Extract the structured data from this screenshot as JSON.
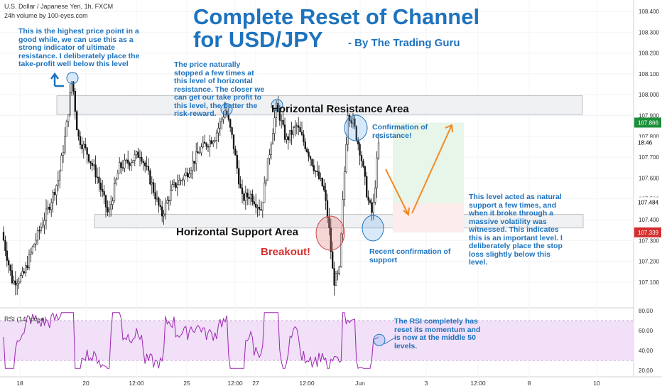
{
  "header": {
    "symbol_line": "U.S. Dollar / Japanese Yen, 1h, FXCM",
    "volume_line": "24h volume by 100-eyes.com"
  },
  "title": {
    "line1": "Complete Reset of Channel",
    "line2": "for USD/JPY",
    "byline": "- By The Trading Guru"
  },
  "annotations": {
    "highest_point": "This is the highest price point in a good while, we can use this as a strong indicator of ultimate resistance. I deliberately place the take-profit well below this level",
    "price_stopped": "The price naturally stopped a few times at this level of horizontal resistance. The closer we can get our take profit to this level, the better the risk-reward.",
    "confirmation_resistance": "Confirmation of resistance!",
    "support_level": "This level acted as natural support a few times, and when it broke through a massive volatility was witnessed. This indicates this is an important level. I deliberately place the stop loss slightly below this level.",
    "recent_support": "Recent confirmation of support",
    "rsi_note": "The RSI completely has reset its momentum and is now at the middle 50 levels.",
    "breakout": "Breakout!",
    "resistance_area": "Horizontal Resistance Area",
    "support_area": "Horizontal Support Area"
  },
  "rsi_label": "RSI (14, close)",
  "colors": {
    "accent": "#1e73be",
    "bull": "#26a69a",
    "bear": "#ef5350",
    "candle": "#111111",
    "rsi_line": "#9c27b0",
    "rsi_band": "#f1e0f8",
    "target_zone": "#e8f5e9",
    "stop_zone": "#fdecec",
    "arrow": "#f08a24",
    "price_badge_green": "#1b8f3a",
    "price_badge_red": "#d32f2f",
    "price_badge_dark": "#000000"
  },
  "chart_data": [
    {
      "type": "candlestick",
      "symbol": "U.S. Dollar / Japanese Yen",
      "interval": "1h",
      "ylim": [
        107.03,
        108.46
      ],
      "y_ticks": [
        "108.400",
        "108.300",
        "108.200",
        "108.100",
        "108.000",
        "107.900",
        "107.800",
        "107.700",
        "107.600",
        "107.500",
        "107.400",
        "107.300",
        "107.200",
        "107.100"
      ],
      "x_ticks": [
        "18",
        "20",
        "12:00",
        "25",
        "12:00",
        "27",
        "12:00",
        "Jun",
        "3",
        "12:00",
        "8",
        "10"
      ],
      "price_badges": [
        {
          "label": "107.866",
          "value": 107.866,
          "color": "green"
        },
        {
          "label": "18:46",
          "value": 107.77,
          "color": "dark"
        },
        {
          "label": "107.484",
          "value": 107.484,
          "color": "dark"
        },
        {
          "label": "107.339",
          "value": 107.339,
          "color": "red"
        }
      ],
      "zones": [
        {
          "name": "Horizontal Resistance Area",
          "low": 107.905,
          "high": 107.995
        },
        {
          "name": "Horizontal Support Area",
          "low": 107.36,
          "high": 107.425
        }
      ],
      "trade_plan": {
        "entry": 107.48,
        "take_profit": 107.866,
        "stop_loss": 107.339
      },
      "key_points": [
        {
          "label": "highest",
          "value": 108.08
        },
        {
          "label": "resistance touch",
          "value": 107.93
        },
        {
          "label": "breakout low",
          "value": 107.09
        }
      ]
    },
    {
      "type": "line",
      "name": "RSI (14, close)",
      "ylim": [
        15,
        80
      ],
      "y_ticks": [
        "80.00",
        "60.00",
        "40.00",
        "20.00"
      ],
      "band": [
        30,
        70
      ],
      "midline": 50,
      "last_value": 52
    }
  ]
}
